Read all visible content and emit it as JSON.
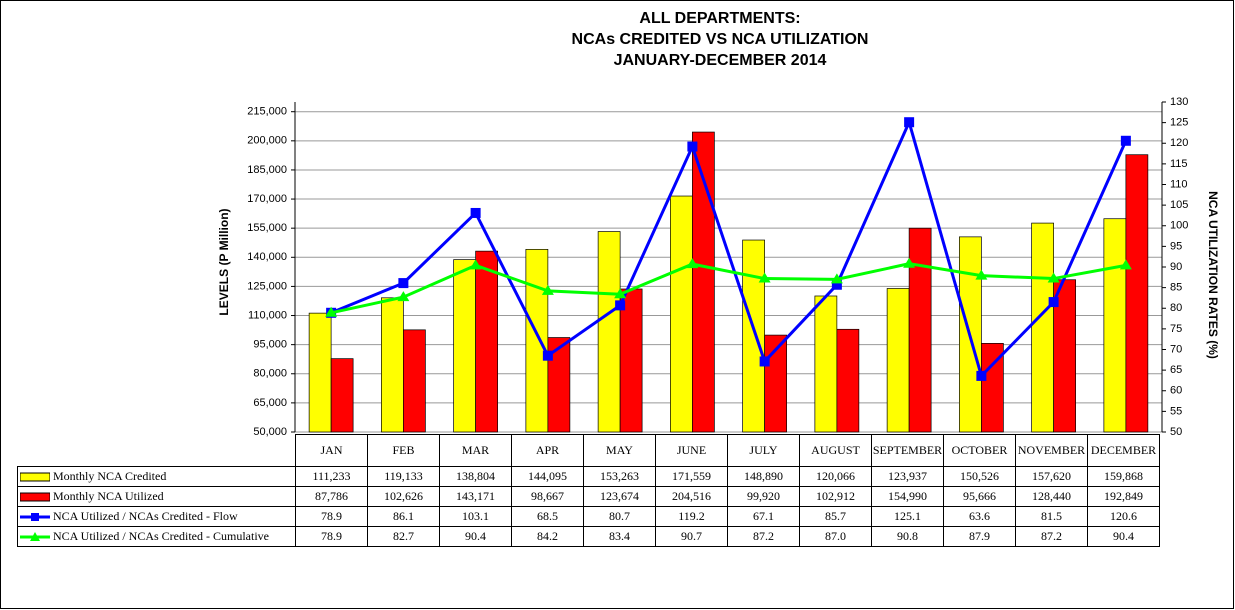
{
  "chart_data": {
    "type": "bar-line-table",
    "title": [
      "ALL DEPARTMENTS:",
      "NCAs CREDITED VS NCA UTILIZATION",
      "JANUARY-DECEMBER 2014"
    ],
    "ylabel": "LEVELS  (P Million)",
    "y2label": "NCA UTILIZATION RATES (%)",
    "categories": [
      "JAN",
      "FEB",
      "MAR",
      "APR",
      "MAY",
      "JUNE",
      "JULY",
      "AUGUST",
      "SEPTEMBER",
      "OCTOBER",
      "NOVEMBER",
      "DECEMBER"
    ],
    "ylim": [
      50000,
      220000
    ],
    "yticks": [
      {
        "value": 50000,
        "label": "50,000"
      },
      {
        "value": 65000,
        "label": "65,000"
      },
      {
        "value": 80000,
        "label": "80,000"
      },
      {
        "value": 95000,
        "label": "95,000"
      },
      {
        "value": 110000,
        "label": "110,000"
      },
      {
        "value": 125000,
        "label": "125,000"
      },
      {
        "value": 140000,
        "label": "140,000"
      },
      {
        "value": 155000,
        "label": "155,000"
      },
      {
        "value": 170000,
        "label": "170,000"
      },
      {
        "value": 185000,
        "label": "185,000"
      },
      {
        "value": 200000,
        "label": "200,000"
      },
      {
        "value": 215000,
        "label": "215,000"
      }
    ],
    "y2lim": [
      50,
      130
    ],
    "y2ticks": [
      50,
      55,
      60,
      65,
      70,
      75,
      80,
      85,
      90,
      95,
      100,
      105,
      110,
      115,
      120,
      125,
      130
    ],
    "grid": true,
    "series": [
      {
        "name": "Monthly NCA Credited",
        "type": "bar",
        "color": "#ffff00",
        "values": [
          111233,
          119133,
          138804,
          144095,
          153263,
          171559,
          148890,
          120066,
          123937,
          150526,
          157620,
          159868
        ],
        "value_labels": [
          "111,233",
          "119,133",
          "138,804",
          "144,095",
          "153,263",
          "171,559",
          "148,890",
          "120,066",
          "123,937",
          "150,526",
          "157,620",
          "159,868"
        ]
      },
      {
        "name": "Monthly NCA Utilized",
        "type": "bar",
        "color": "#ff0000",
        "values": [
          87786,
          102626,
          143171,
          98667,
          123674,
          204516,
          99920,
          102912,
          154990,
          95666,
          128440,
          192849
        ],
        "value_labels": [
          "87,786",
          "102,626",
          "143,171",
          "98,667",
          "123,674",
          "204,516",
          "99,920",
          "102,912",
          "154,990",
          "95,666",
          "128,440",
          "192,849"
        ]
      },
      {
        "name": "NCA Utilized / NCAs Credited - Flow",
        "type": "line",
        "marker": "square",
        "axis": "y2",
        "color": "#0000ff",
        "values": [
          78.9,
          86.1,
          103.1,
          68.5,
          80.7,
          119.2,
          67.1,
          85.7,
          125.1,
          63.6,
          81.5,
          120.6
        ],
        "value_labels": [
          "78.9",
          "86.1",
          "103.1",
          "68.5",
          "80.7",
          "119.2",
          "67.1",
          "85.7",
          "125.1",
          "63.6",
          "81.5",
          "120.6"
        ]
      },
      {
        "name": "NCA Utilized / NCAs Credited - Cumulative",
        "type": "line",
        "marker": "triangle",
        "axis": "y2",
        "color": "#00ff00",
        "values": [
          78.9,
          82.7,
          90.4,
          84.2,
          83.4,
          90.7,
          87.2,
          87.0,
          90.8,
          87.9,
          87.2,
          90.4
        ],
        "value_labels": [
          "78.9",
          "82.7",
          "90.4",
          "84.2",
          "83.4",
          "90.7",
          "87.2",
          "87.0",
          "90.8",
          "87.9",
          "87.2",
          "90.4"
        ]
      }
    ]
  }
}
